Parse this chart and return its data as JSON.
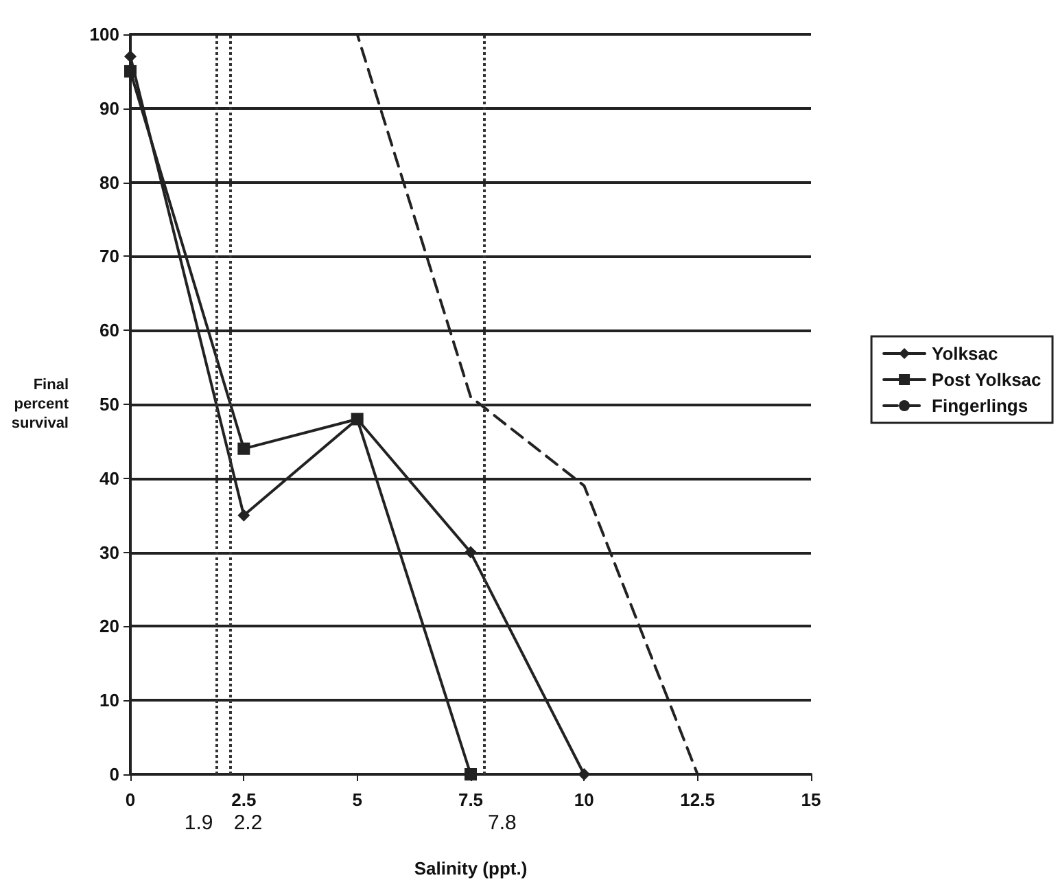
{
  "chart_data": {
    "type": "line",
    "xlabel": "Salinity (ppt.)",
    "ylabel": "Final percent survival",
    "x": [
      0,
      2.5,
      5,
      7.5,
      10,
      12.5
    ],
    "series": [
      {
        "name": "Yolksac",
        "color": "#222222",
        "marker": "diamond",
        "line_style": "solid",
        "values": [
          97,
          35,
          48,
          30,
          0,
          null
        ]
      },
      {
        "name": "Post Yolksac",
        "color": "#222222",
        "marker": "square",
        "line_style": "solid",
        "values": [
          95,
          44,
          48,
          0,
          null,
          null
        ]
      },
      {
        "name": "Fingerlings",
        "color": "#222222",
        "marker": "none",
        "line_style": "dashed",
        "values": [
          100,
          100,
          100,
          51,
          39,
          0
        ]
      }
    ],
    "xlim": [
      0,
      15
    ],
    "xticks": [
      0,
      2.5,
      5,
      7.5,
      10,
      12.5,
      15
    ],
    "ylim": [
      0,
      100
    ],
    "yticks": [
      0,
      10,
      20,
      30,
      40,
      50,
      60,
      70,
      80,
      90,
      100
    ],
    "grid": "y",
    "legend": "right",
    "ref_lines": [
      {
        "axis": "x",
        "value": 2.2,
        "label": "2.2",
        "line_style": "dotted"
      },
      {
        "axis": "x",
        "value": 1.9,
        "label": "1.9",
        "line_style": "dotted"
      },
      {
        "axis": "x",
        "value": 7.8,
        "label": "7.8",
        "line_style": "dotted"
      }
    ]
  }
}
